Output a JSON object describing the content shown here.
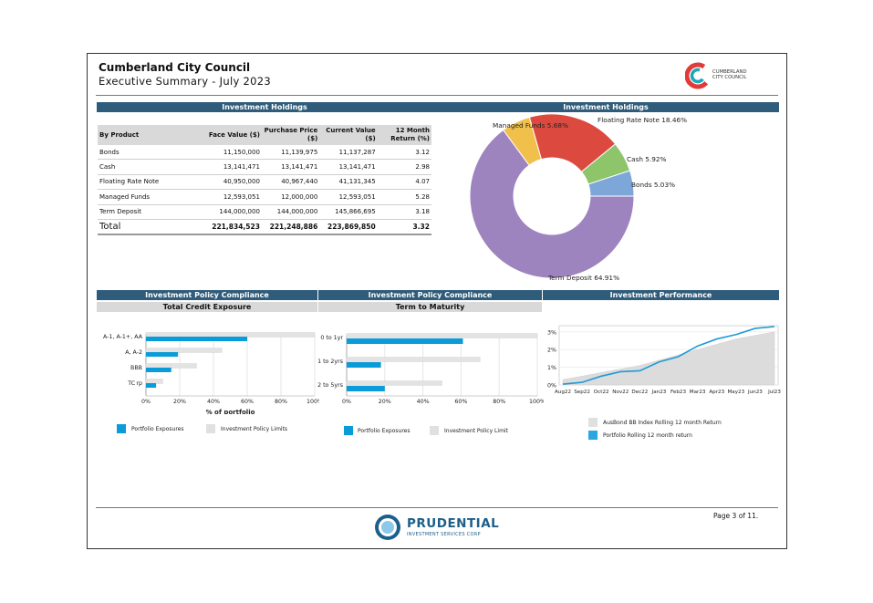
{
  "header": {
    "council": "Cumberland City Council",
    "subtitle": "Executive Summary - July 2023",
    "logo_text_line1": "CUMBERLAND",
    "logo_text_line2": "CITY COUNCIL"
  },
  "holdings_table": {
    "banner": "Investment Holdings",
    "columns": [
      "By Product",
      "Face Value ($)",
      "Purchase Price ($)",
      "Current Value ($)",
      "12 Month Return (%)"
    ],
    "rows": [
      [
        "Bonds",
        "11,150,000",
        "11,139,975",
        "11,137,287",
        "3.12"
      ],
      [
        "Cash",
        "13,141,471",
        "13,141,471",
        "13,141,471",
        "2.98"
      ],
      [
        "Floating Rate Note",
        "40,950,000",
        "40,967,440",
        "41,131,345",
        "4.07"
      ],
      [
        "Managed Funds",
        "12,593,051",
        "12,000,000",
        "12,593,051",
        "5.28"
      ],
      [
        "Term Deposit",
        "144,000,000",
        "144,000,000",
        "145,866,695",
        "3.18"
      ]
    ],
    "total": [
      "Total",
      "221,834,523",
      "221,248,886",
      "223,869,850",
      "3.32"
    ]
  },
  "holdings_chart_banner": "Investment Holdings",
  "compliance_banner_1": "Investment Policy Compliance",
  "compliance_banner_2": "Investment Policy Compliance",
  "performance_banner": "Investment Performance",
  "credit_subtitle": "Total Credit Exposure",
  "maturity_subtitle": "Term to Maturity",
  "footer": {
    "page": "Page 3 of 11.",
    "brand": "PRUDENTIAL",
    "brand_sub": "INVESTMENT SERVICES CORP"
  },
  "colors": {
    "banner": "#2e5c7a",
    "portfolio": "#0a9bd9",
    "policy": "#e3e3e3",
    "term_deposit": "#9e84bf",
    "managed_funds": "#f0c04b",
    "frn": "#dc4a3f",
    "cash": "#8ec46a",
    "bonds": "#7da7d9"
  },
  "chart_data": [
    {
      "type": "pie",
      "subtype": "donut",
      "labels": [
        "Term Deposit",
        "Managed Funds",
        "Floating Rate Note",
        "Cash",
        "Bonds"
      ],
      "values": [
        64.91,
        5.68,
        18.46,
        5.92,
        5.03
      ],
      "data_labels": [
        "Term Deposit 64.91%",
        "Managed Funds 5.68%",
        "Floating Rate Note 18.46%",
        "Cash 5.92%",
        "Bonds 5.03%"
      ]
    },
    {
      "type": "bar",
      "orientation": "horizontal",
      "title": "",
      "categories": [
        "A-1, A-1+, AA",
        "A, A-2",
        "BBB",
        "TCorp"
      ],
      "category_labels": [
        "A-1, A-1+, AA",
        "A, A-2",
        "BBB",
        "TC rp"
      ],
      "series": [
        {
          "name": "Investment Policy Limits",
          "values": [
            100,
            45,
            30,
            10
          ]
        },
        {
          "name": "Portfolio Exposures",
          "values": [
            60,
            19,
            15,
            6
          ]
        }
      ],
      "xlabel": "% of portfolio",
      "xticks": [
        "0%",
        "20%",
        "40%",
        "60%",
        "80%",
        "100%"
      ],
      "xlim": [
        0,
        100
      ],
      "legend": [
        "Portfolio Exposures",
        "Investment Policy Limits"
      ]
    },
    {
      "type": "bar",
      "orientation": "horizontal",
      "categories": [
        "0 to 1yr",
        "1 to 2yrs",
        "2 to 5yrs"
      ],
      "series": [
        {
          "name": "Investment Policy Limit",
          "values": [
            100,
            70,
            50
          ]
        },
        {
          "name": "Portfolio Exposures",
          "values": [
            61,
            18,
            20
          ]
        }
      ],
      "xticks": [
        "0%",
        "20%",
        "40%",
        "60%",
        "80%",
        "100%"
      ],
      "xlim": [
        0,
        100
      ],
      "legend": [
        "Portfolio Exposures",
        "Investment Policy Limit"
      ]
    },
    {
      "type": "line",
      "categories": [
        "Aug22",
        "Sep22",
        "Oct22",
        "Nov22",
        "Dec22",
        "Jan23",
        "Feb23",
        "Mar23",
        "Apr23",
        "May23",
        "Jun23",
        "Jul23"
      ],
      "series": [
        {
          "name": "AusBond BB Index Rolling 12 month Return",
          "style": "area",
          "values": [
            0.3,
            0.5,
            0.7,
            0.9,
            1.1,
            1.4,
            1.7,
            2.0,
            2.3,
            2.6,
            2.8,
            3.0
          ]
        },
        {
          "name": "Portfolio Rolling 12 month return",
          "style": "line",
          "values": [
            0.05,
            0.15,
            0.5,
            0.75,
            0.8,
            1.3,
            1.6,
            2.2,
            2.6,
            2.85,
            3.2,
            3.3
          ]
        }
      ],
      "yticks": [
        "0%",
        "1%",
        "2%",
        "3%"
      ],
      "ylim": [
        0,
        3.3
      ],
      "legend": [
        "AusBond BB Index Rolling 12 month Return",
        "Portfolio Rolling 12 month return"
      ]
    }
  ]
}
